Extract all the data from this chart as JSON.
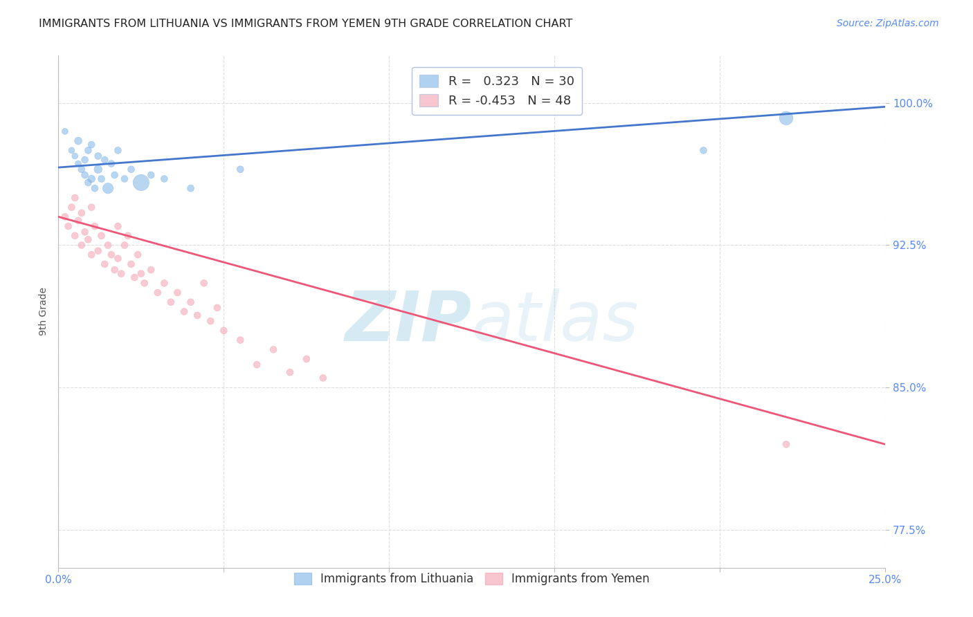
{
  "title": "IMMIGRANTS FROM LITHUANIA VS IMMIGRANTS FROM YEMEN 9TH GRADE CORRELATION CHART",
  "source": "Source: ZipAtlas.com",
  "ylabel": "9th Grade",
  "xlim": [
    0.0,
    0.25
  ],
  "ylim": [
    0.755,
    1.025
  ],
  "yticks": [
    0.775,
    0.85,
    0.925,
    1.0
  ],
  "ytick_labels": [
    "77.5%",
    "85.0%",
    "92.5%",
    "100.0%"
  ],
  "xticks": [
    0.0,
    0.05,
    0.1,
    0.15,
    0.2,
    0.25
  ],
  "xtick_labels": [
    "0.0%",
    "",
    "",
    "",
    "",
    "25.0%"
  ],
  "blue_R": 0.323,
  "blue_N": 30,
  "pink_R": -0.453,
  "pink_N": 48,
  "blue_color": "#7EB3E8",
  "pink_color": "#F4A0B0",
  "trend_blue_color": "#4477CC",
  "trend_pink_color": "#EE5577",
  "watermark_zip": "ZIP",
  "watermark_atlas": "atlas",
  "watermark_color": "#BBDDEE",
  "background_color": "#FFFFFF",
  "grid_color": "#DDDDDD",
  "axis_color": "#BBBBBB",
  "title_color": "#222222",
  "label_color": "#555555",
  "tick_color_right": "#5588FF",
  "tick_color_bottom": "#5588FF",
  "legend_edge_color": "#AABBDD",
  "blue_points_x": [
    0.002,
    0.004,
    0.005,
    0.006,
    0.006,
    0.007,
    0.008,
    0.008,
    0.009,
    0.009,
    0.01,
    0.01,
    0.011,
    0.012,
    0.012,
    0.013,
    0.014,
    0.015,
    0.016,
    0.017,
    0.018,
    0.02,
    0.022,
    0.025,
    0.028,
    0.032,
    0.04,
    0.055,
    0.195,
    0.22
  ],
  "blue_points_y": [
    0.985,
    0.975,
    0.972,
    0.968,
    0.98,
    0.965,
    0.962,
    0.97,
    0.958,
    0.975,
    0.96,
    0.978,
    0.955,
    0.965,
    0.972,
    0.96,
    0.97,
    0.955,
    0.968,
    0.962,
    0.975,
    0.96,
    0.965,
    0.958,
    0.962,
    0.96,
    0.955,
    0.965,
    0.975,
    0.992
  ],
  "blue_points_size": [
    40,
    40,
    40,
    40,
    60,
    50,
    50,
    50,
    50,
    50,
    60,
    50,
    50,
    70,
    50,
    50,
    50,
    120,
    50,
    50,
    50,
    50,
    50,
    280,
    50,
    50,
    50,
    50,
    50,
    200
  ],
  "pink_points_x": [
    0.002,
    0.003,
    0.004,
    0.005,
    0.005,
    0.006,
    0.007,
    0.007,
    0.008,
    0.009,
    0.01,
    0.01,
    0.011,
    0.012,
    0.013,
    0.014,
    0.015,
    0.016,
    0.017,
    0.018,
    0.018,
    0.019,
    0.02,
    0.021,
    0.022,
    0.023,
    0.024,
    0.025,
    0.026,
    0.028,
    0.03,
    0.032,
    0.034,
    0.036,
    0.038,
    0.04,
    0.042,
    0.044,
    0.046,
    0.048,
    0.05,
    0.055,
    0.06,
    0.065,
    0.07,
    0.075,
    0.08,
    0.22
  ],
  "pink_points_y": [
    0.94,
    0.935,
    0.945,
    0.93,
    0.95,
    0.938,
    0.925,
    0.942,
    0.932,
    0.928,
    0.945,
    0.92,
    0.935,
    0.922,
    0.93,
    0.915,
    0.925,
    0.92,
    0.912,
    0.918,
    0.935,
    0.91,
    0.925,
    0.93,
    0.915,
    0.908,
    0.92,
    0.91,
    0.905,
    0.912,
    0.9,
    0.905,
    0.895,
    0.9,
    0.89,
    0.895,
    0.888,
    0.905,
    0.885,
    0.892,
    0.88,
    0.875,
    0.862,
    0.87,
    0.858,
    0.865,
    0.855,
    0.82
  ],
  "pink_points_size": [
    50,
    50,
    50,
    50,
    50,
    50,
    50,
    50,
    50,
    50,
    50,
    50,
    50,
    50,
    50,
    50,
    50,
    50,
    50,
    50,
    50,
    50,
    50,
    50,
    50,
    50,
    50,
    50,
    50,
    50,
    50,
    50,
    50,
    50,
    50,
    50,
    50,
    50,
    50,
    50,
    50,
    50,
    50,
    50,
    50,
    50,
    50,
    50
  ],
  "blue_trend_x0": 0.0,
  "blue_trend_x1": 0.25,
  "blue_trend_y0": 0.966,
  "blue_trend_y1": 0.998,
  "pink_trend_x0": 0.0,
  "pink_trend_x1": 0.25,
  "pink_trend_y0": 0.94,
  "pink_trend_y1": 0.82
}
